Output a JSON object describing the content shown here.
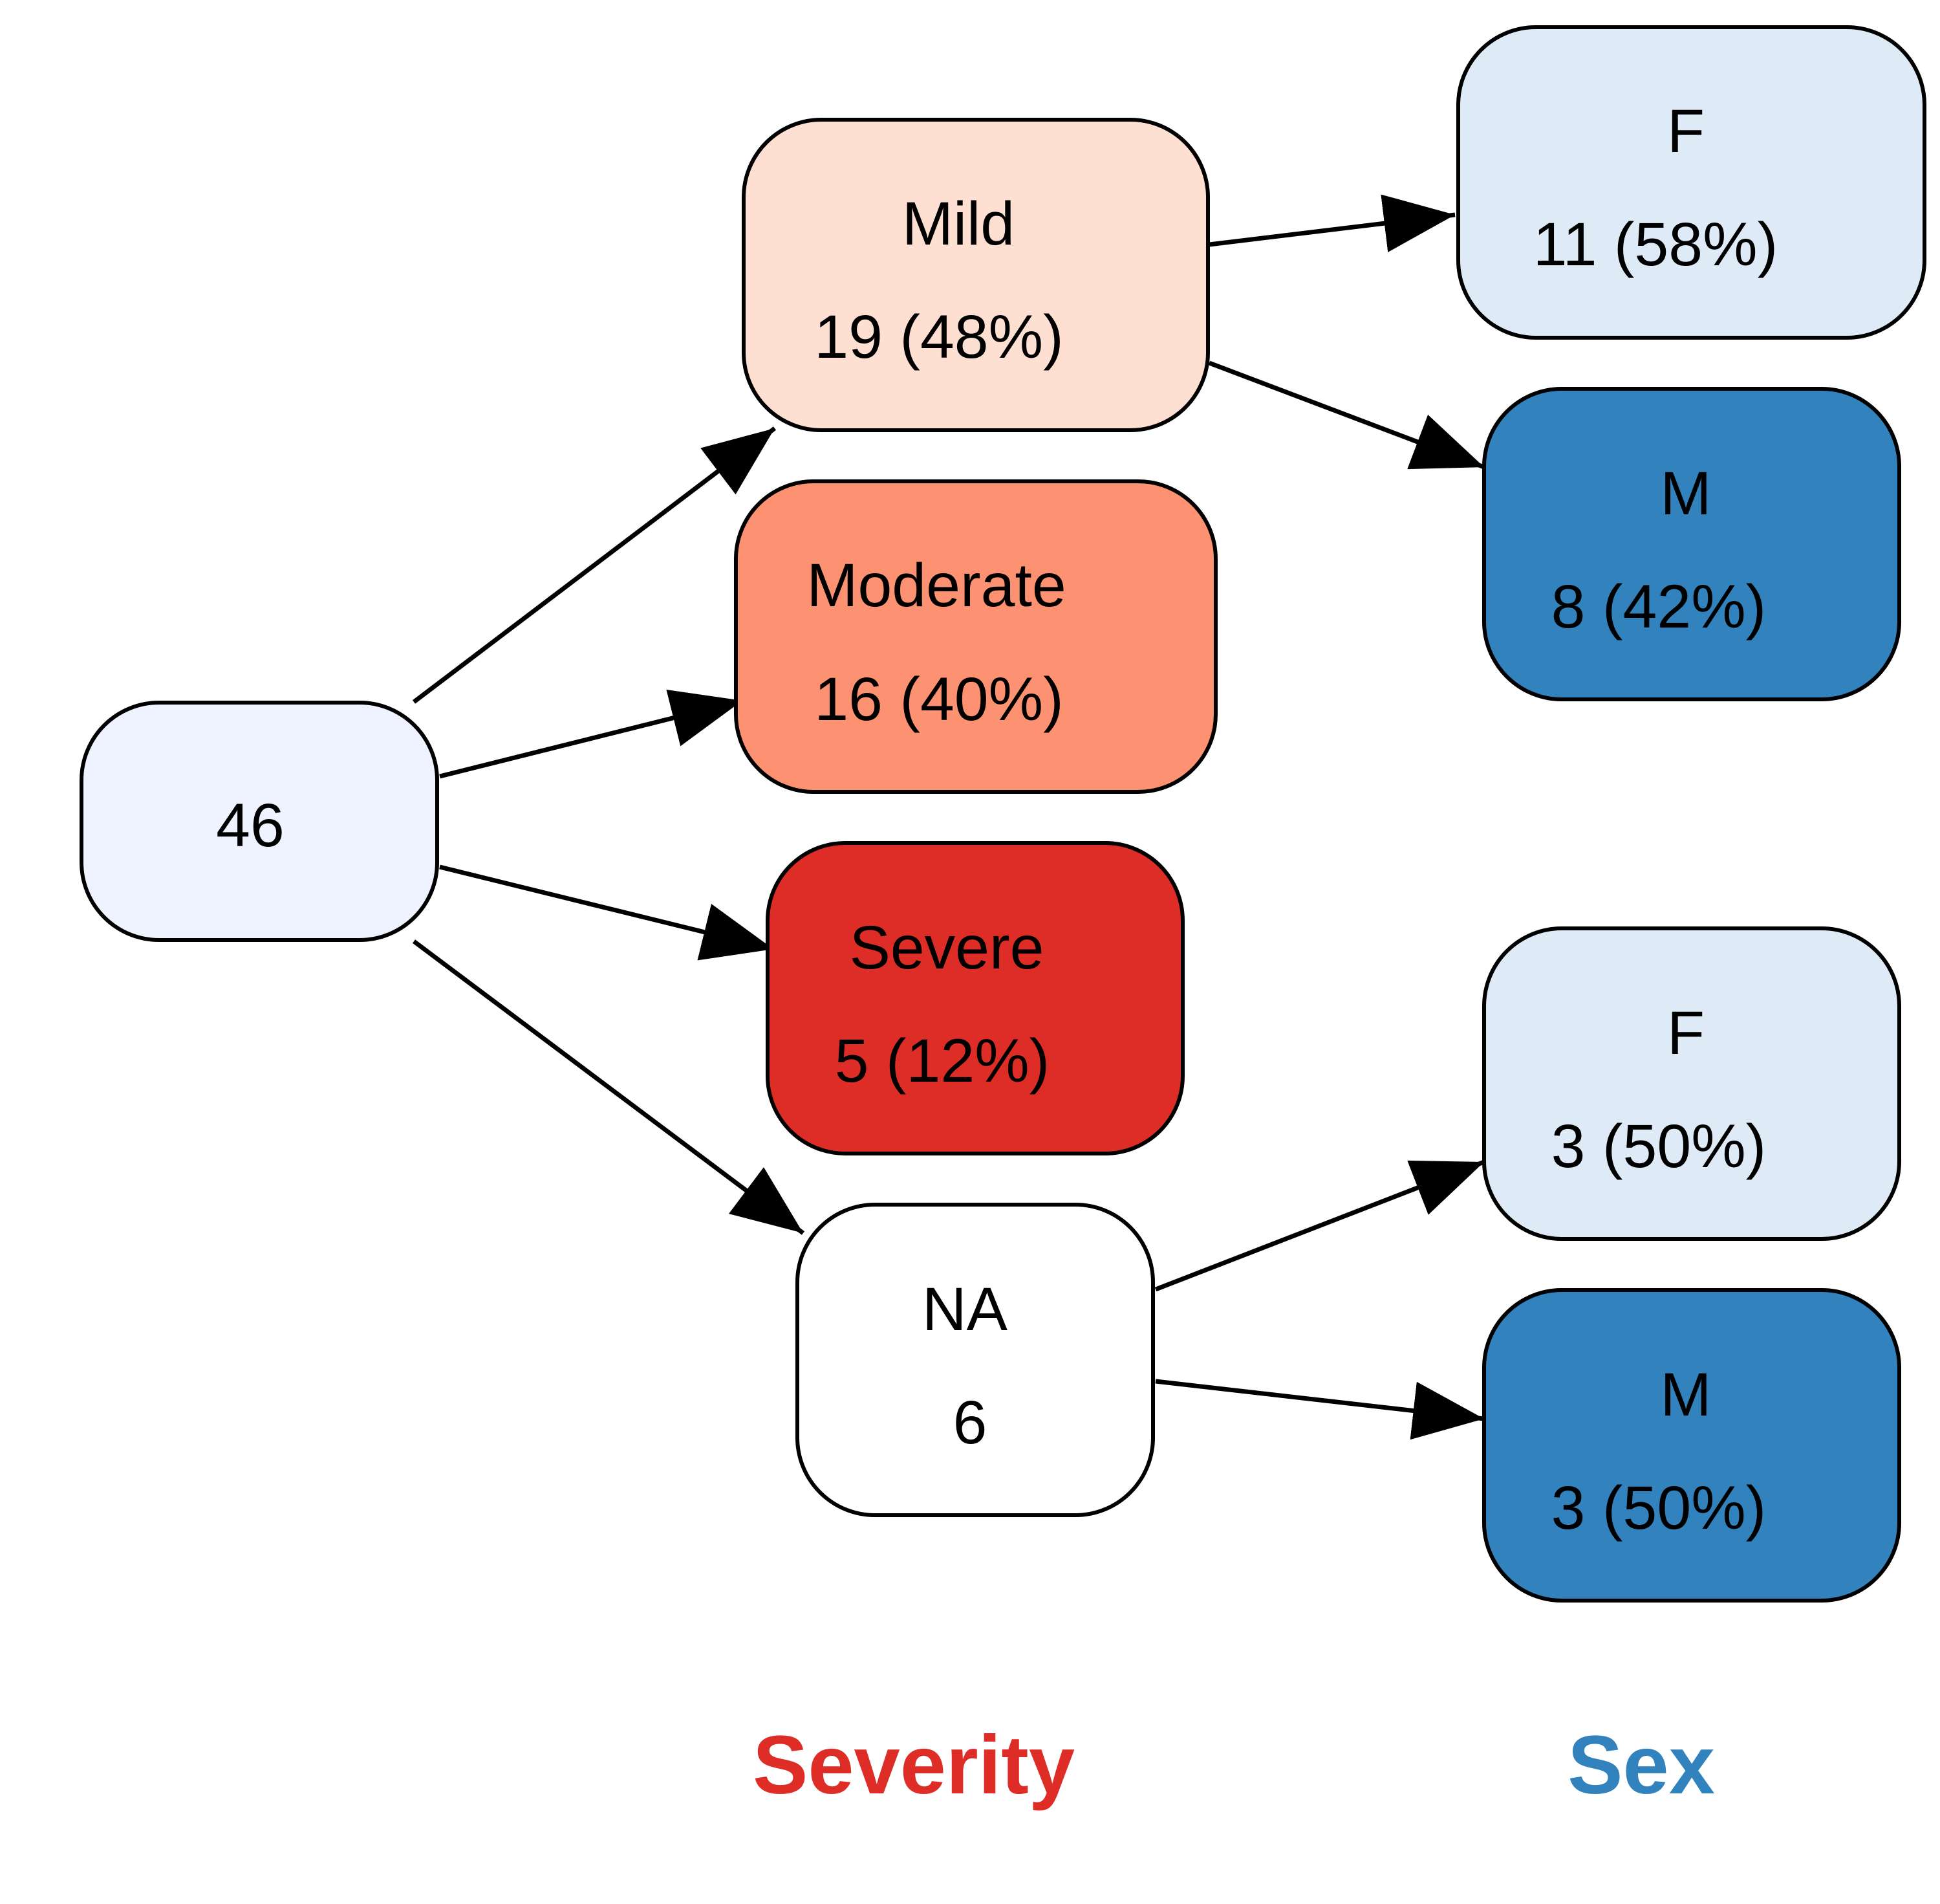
{
  "nodes": {
    "root": {
      "line1": "46",
      "fill": "#EFF3FF"
    },
    "mild": {
      "line1": "Mild",
      "line2": "19 (48%)",
      "fill": "#FEE0D2"
    },
    "moderate": {
      "line1": "Moderate",
      "line2": "16 (40%)",
      "fill": "#FC9272"
    },
    "severe": {
      "line1": "Severe",
      "line2": "5 (12%)",
      "fill": "#DE2D26"
    },
    "na": {
      "line1": "NA",
      "line2": "6",
      "fill": "#FFFFFF"
    },
    "mild_f": {
      "line1": "F",
      "line2": "11 (58%)",
      "fill": "#DEEBF7"
    },
    "mild_m": {
      "line1": "M",
      "line2": "8 (42%)",
      "fill": "#3182BD"
    },
    "na_f": {
      "line1": "F",
      "line2": "3 (50%)",
      "fill": "#DEEBF7"
    },
    "na_m": {
      "line1": "M",
      "line2": "3 (50%)",
      "fill": "#3182BD"
    }
  },
  "edges": [
    {
      "from": "46",
      "to": "Mild"
    },
    {
      "from": "46",
      "to": "Moderate"
    },
    {
      "from": "46",
      "to": "Severe"
    },
    {
      "from": "46",
      "to": "NA"
    },
    {
      "from": "Mild",
      "to": "F"
    },
    {
      "from": "Mild",
      "to": "M"
    },
    {
      "from": "NA",
      "to": "F"
    },
    {
      "from": "NA",
      "to": "M"
    }
  ],
  "columns": {
    "severity": {
      "label": "Severity",
      "color": "#DE2D26"
    },
    "sex": {
      "label": "Sex",
      "color": "#3182BD"
    }
  }
}
